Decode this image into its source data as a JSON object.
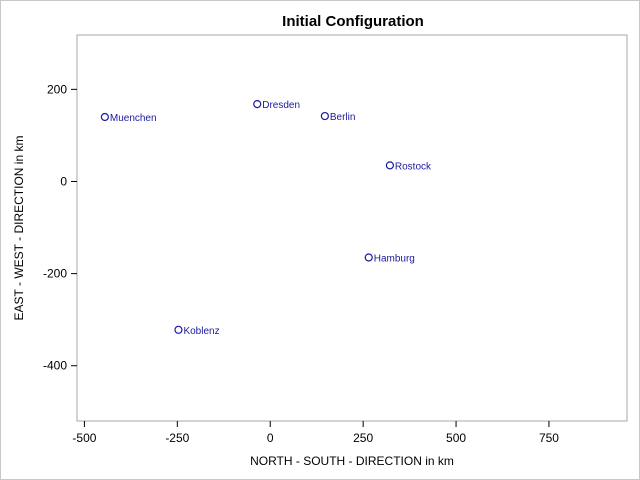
{
  "chart_data": {
    "type": "scatter",
    "title": "Initial Configuration",
    "xlabel": "NORTH - SOUTH - DIRECTION in km",
    "ylabel": "EAST - WEST - DIRECTION in km",
    "xlim": [
      -520,
      960
    ],
    "ylim": [
      -520,
      318
    ],
    "xticks": [
      -500,
      -250,
      0,
      250,
      500,
      750
    ],
    "yticks": [
      200,
      0,
      -200,
      -400
    ],
    "grid": false,
    "marker_color": "#1a1a9e",
    "points": [
      {
        "name": "Muenchen",
        "x": -445,
        "y": 140
      },
      {
        "name": "Dresden",
        "x": -35,
        "y": 168
      },
      {
        "name": "Berlin",
        "x": 147,
        "y": 142
      },
      {
        "name": "Rostock",
        "x": 322,
        "y": 35
      },
      {
        "name": "Hamburg",
        "x": 265,
        "y": -165
      },
      {
        "name": "Koblenz",
        "x": -247,
        "y": -322
      }
    ]
  }
}
